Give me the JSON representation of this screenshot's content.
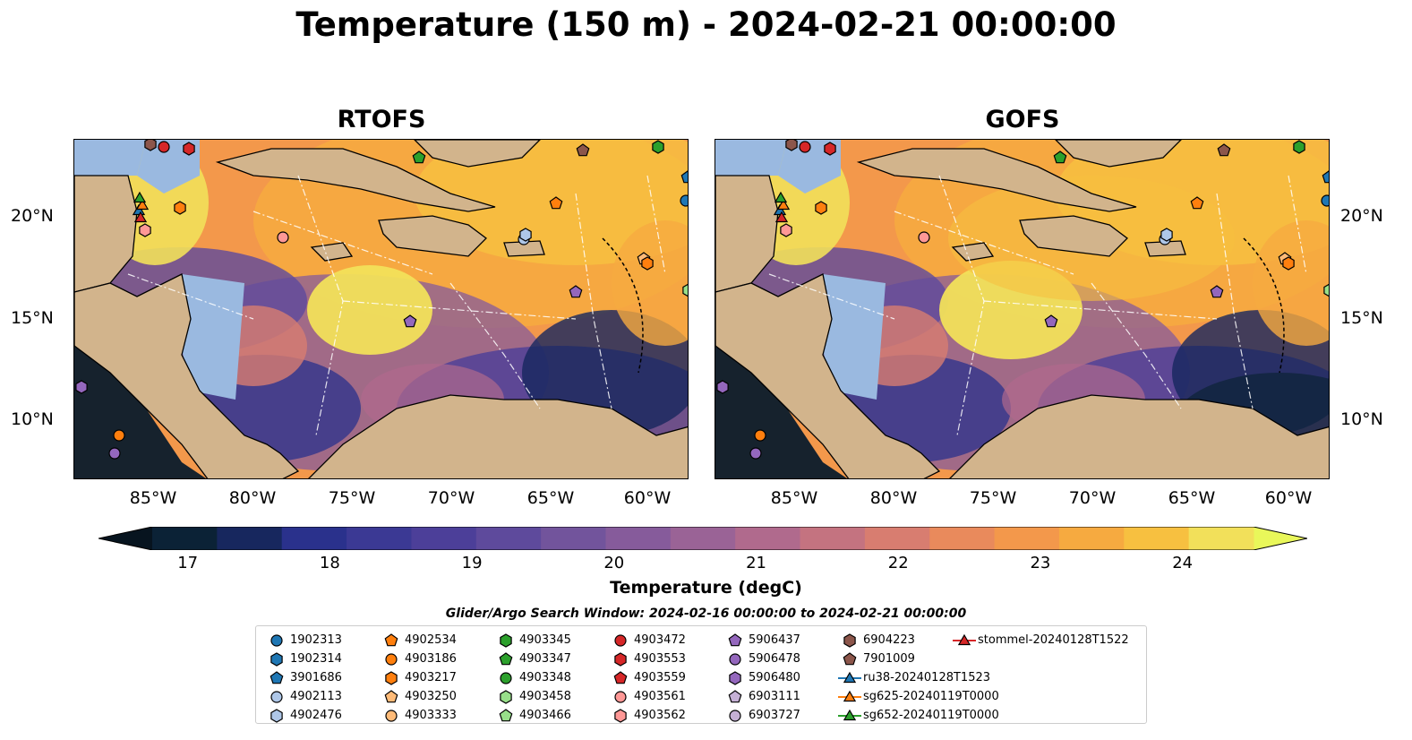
{
  "title": "Temperature (150 m) - 2024-02-21 00:00:00",
  "panels": [
    {
      "title": "RTOFS"
    },
    {
      "title": "GOFS"
    }
  ],
  "lat_labels": [
    "20°N",
    "15°N",
    "10°N"
  ],
  "lon_labels": [
    "85°W",
    "80°W",
    "75°W",
    "70°W",
    "65°W",
    "60°W"
  ],
  "colorbar": {
    "label": "Temperature (degC)",
    "ticks": [
      "17",
      "18",
      "19",
      "20",
      "21",
      "22",
      "23",
      "24"
    ],
    "min": 16.75,
    "max": 24.5,
    "colors": [
      "#0b2236",
      "#17275e",
      "#2a318c",
      "#3b3994",
      "#4c3f99",
      "#5e4a9c",
      "#72549c",
      "#865b9b",
      "#9a6396",
      "#b06a8d",
      "#c47380",
      "#d87d70",
      "#e98a5c",
      "#f3984b",
      "#f6aa40",
      "#f7c040",
      "#f2e05a"
    ],
    "under_color": "#07141f",
    "over_color": "#e9f75a"
  },
  "legend": {
    "title": "Glider/Argo Search Window: 2024-02-16 00:00:00 to 2024-02-21 00:00:00",
    "items": [
      {
        "label": "1902313",
        "color": "#1f77b4",
        "shape": "circle"
      },
      {
        "label": "1902314",
        "color": "#1f77b4",
        "shape": "hexagon"
      },
      {
        "label": "3901686",
        "color": "#1f77b4",
        "shape": "pentagon"
      },
      {
        "label": "4902113",
        "color": "#aec7e8",
        "shape": "circle"
      },
      {
        "label": "4902476",
        "color": "#aec7e8",
        "shape": "hexagon"
      },
      {
        "label": "4902534",
        "color": "#ff7f0e",
        "shape": "pentagon"
      },
      {
        "label": "4903186",
        "color": "#ff7f0e",
        "shape": "circle"
      },
      {
        "label": "4903217",
        "color": "#ff7f0e",
        "shape": "hexagon"
      },
      {
        "label": "4903250",
        "color": "#ffbb78",
        "shape": "pentagon"
      },
      {
        "label": "4903333",
        "color": "#ffbb78",
        "shape": "circle"
      },
      {
        "label": "4903345",
        "color": "#2ca02c",
        "shape": "hexagon"
      },
      {
        "label": "4903347",
        "color": "#2ca02c",
        "shape": "pentagon"
      },
      {
        "label": "4903348",
        "color": "#2ca02c",
        "shape": "circle"
      },
      {
        "label": "4903458",
        "color": "#98df8a",
        "shape": "hexagon"
      },
      {
        "label": "4903466",
        "color": "#98df8a",
        "shape": "pentagon"
      },
      {
        "label": "4903472",
        "color": "#d62728",
        "shape": "circle"
      },
      {
        "label": "4903553",
        "color": "#d62728",
        "shape": "hexagon"
      },
      {
        "label": "4903559",
        "color": "#d62728",
        "shape": "pentagon"
      },
      {
        "label": "4903561",
        "color": "#ff9896",
        "shape": "circle"
      },
      {
        "label": "4903562",
        "color": "#ff9896",
        "shape": "hexagon"
      },
      {
        "label": "5906437",
        "color": "#9467bd",
        "shape": "pentagon"
      },
      {
        "label": "5906478",
        "color": "#9467bd",
        "shape": "circle"
      },
      {
        "label": "5906480",
        "color": "#9467bd",
        "shape": "hexagon"
      },
      {
        "label": "6903111",
        "color": "#c5b0d5",
        "shape": "pentagon"
      },
      {
        "label": "6903727",
        "color": "#c5b0d5",
        "shape": "circle"
      },
      {
        "label": "6904223",
        "color": "#8c564b",
        "shape": "hexagon"
      },
      {
        "label": "7901009",
        "color": "#8c564b",
        "shape": "pentagon"
      },
      {
        "label": "ru38-20240128T1523",
        "color": "#1f77b4",
        "shape": "triangle-line"
      },
      {
        "label": "sg625-20240119T0000",
        "color": "#ff7f0e",
        "shape": "triangle-line"
      },
      {
        "label": "sg652-20240119T0000",
        "color": "#2ca02c",
        "shape": "triangle-line"
      },
      {
        "label": "stommel-20240128T1522",
        "color": "#d62728",
        "shape": "triangle-line"
      }
    ]
  },
  "map_colors": {
    "land": "#d2b48c",
    "shelf_water": "#9ab9e0",
    "coast": "#000000"
  }
}
